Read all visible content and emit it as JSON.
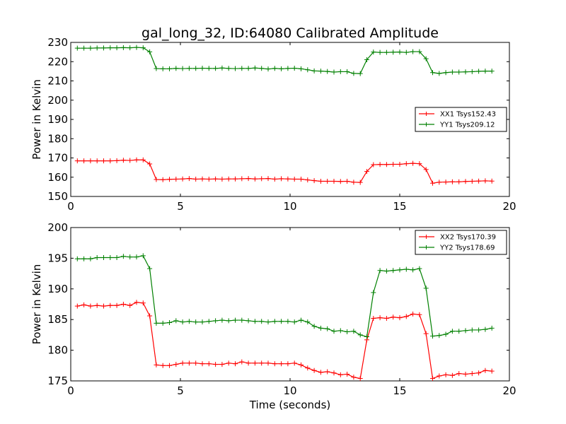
{
  "chart_data": [
    {
      "type": "line",
      "title": "gal_long_32, ID:64080 Calibrated Amplitude",
      "xlabel": "",
      "ylabel": "Power in Kelvin",
      "xlim": [
        0,
        20
      ],
      "ylim": [
        150,
        230
      ],
      "xticks": [
        0,
        5,
        10,
        15,
        20
      ],
      "yticks": [
        150,
        160,
        170,
        180,
        190,
        200,
        210,
        220,
        230
      ],
      "grid": false,
      "legend_position": "center-right",
      "x": [
        0.3,
        0.6,
        0.9,
        1.2,
        1.5,
        1.8,
        2.1,
        2.4,
        2.7,
        3.0,
        3.3,
        3.6,
        3.9,
        4.2,
        4.5,
        4.8,
        5.1,
        5.4,
        5.7,
        6.0,
        6.3,
        6.6,
        6.9,
        7.2,
        7.5,
        7.8,
        8.1,
        8.4,
        8.7,
        9.0,
        9.3,
        9.6,
        9.9,
        10.2,
        10.5,
        10.8,
        11.1,
        11.4,
        11.7,
        12.0,
        12.3,
        12.6,
        12.9,
        13.2,
        13.5,
        13.8,
        14.1,
        14.4,
        14.7,
        15.0,
        15.3,
        15.6,
        15.9,
        16.2,
        16.5,
        16.8,
        17.1,
        17.4,
        17.7,
        18.0,
        18.3,
        18.6,
        18.9,
        19.2
      ],
      "series": [
        {
          "name": "XX1 Tsys152.43",
          "color": "#ff0000",
          "values": [
            168.5,
            168.5,
            168.5,
            168.5,
            168.5,
            168.5,
            168.6,
            168.8,
            168.7,
            169.0,
            169.0,
            166.9,
            158.8,
            158.7,
            158.9,
            159.0,
            159.1,
            159.3,
            159.0,
            159.1,
            159.0,
            159.1,
            159.0,
            159.1,
            159.1,
            159.2,
            159.3,
            159.1,
            159.2,
            159.3,
            159.0,
            159.2,
            159.1,
            159.0,
            159.0,
            158.6,
            158.2,
            157.9,
            157.9,
            157.9,
            157.8,
            157.9,
            157.4,
            157.3,
            163.0,
            166.5,
            166.6,
            166.6,
            166.7,
            166.7,
            167.0,
            167.2,
            167.0,
            164.0,
            156.9,
            157.4,
            157.5,
            157.6,
            157.6,
            157.8,
            157.9,
            158.0,
            158.1,
            158.0
          ]
        },
        {
          "name": "YY1 Tsys209.12",
          "color": "#008000",
          "values": [
            227.0,
            227.0,
            227.0,
            227.1,
            227.1,
            227.2,
            227.2,
            227.3,
            227.2,
            227.4,
            227.2,
            225.1,
            216.4,
            216.3,
            216.3,
            216.5,
            216.4,
            216.5,
            216.5,
            216.6,
            216.5,
            216.5,
            216.7,
            216.5,
            216.4,
            216.5,
            216.5,
            216.7,
            216.5,
            216.2,
            216.5,
            216.3,
            216.5,
            216.6,
            216.3,
            215.8,
            215.2,
            215.1,
            214.9,
            214.6,
            214.8,
            214.8,
            213.9,
            213.8,
            221.0,
            225.0,
            224.8,
            224.8,
            224.9,
            225.0,
            224.8,
            225.2,
            225.2,
            221.5,
            214.3,
            213.9,
            214.3,
            214.6,
            214.6,
            214.7,
            214.8,
            215.0,
            215.1,
            215.1
          ]
        }
      ]
    },
    {
      "type": "line",
      "title": "",
      "xlabel": "Time (seconds)",
      "ylabel": "Power in Kelvin",
      "xlim": [
        0,
        20
      ],
      "ylim": [
        175,
        200
      ],
      "xticks": [
        0,
        5,
        10,
        15,
        20
      ],
      "yticks": [
        175,
        180,
        185,
        190,
        195,
        200
      ],
      "grid": false,
      "legend_position": "top-right",
      "x": [
        0.3,
        0.6,
        0.9,
        1.2,
        1.5,
        1.8,
        2.1,
        2.4,
        2.7,
        3.0,
        3.3,
        3.6,
        3.9,
        4.2,
        4.5,
        4.8,
        5.1,
        5.4,
        5.7,
        6.0,
        6.3,
        6.6,
        6.9,
        7.2,
        7.5,
        7.8,
        8.1,
        8.4,
        8.7,
        9.0,
        9.3,
        9.6,
        9.9,
        10.2,
        10.5,
        10.8,
        11.1,
        11.4,
        11.7,
        12.0,
        12.3,
        12.6,
        12.9,
        13.2,
        13.5,
        13.8,
        14.1,
        14.4,
        14.7,
        15.0,
        15.3,
        15.6,
        15.9,
        16.2,
        16.5,
        16.8,
        17.1,
        17.4,
        17.7,
        18.0,
        18.3,
        18.6,
        18.9,
        19.2
      ],
      "series": [
        {
          "name": "XX2 Tsys170.39",
          "color": "#ff0000",
          "values": [
            187.2,
            187.4,
            187.2,
            187.3,
            187.2,
            187.3,
            187.3,
            187.5,
            187.3,
            187.8,
            187.7,
            185.6,
            177.6,
            177.5,
            177.5,
            177.7,
            177.9,
            177.9,
            177.9,
            177.8,
            177.8,
            177.7,
            177.7,
            177.9,
            177.8,
            178.1,
            177.9,
            177.9,
            177.9,
            177.9,
            177.8,
            177.8,
            177.8,
            177.9,
            177.6,
            177.1,
            176.7,
            176.4,
            176.5,
            176.3,
            176.0,
            176.1,
            175.6,
            175.4,
            181.7,
            185.2,
            185.3,
            185.2,
            185.4,
            185.3,
            185.5,
            185.9,
            185.8,
            182.7,
            175.4,
            175.8,
            176.0,
            175.9,
            176.2,
            176.1,
            176.2,
            176.3,
            176.7,
            176.6
          ]
        },
        {
          "name": "YY2 Tsys178.69",
          "color": "#008000",
          "values": [
            194.9,
            194.9,
            194.9,
            195.1,
            195.1,
            195.1,
            195.1,
            195.3,
            195.2,
            195.2,
            195.4,
            193.3,
            184.4,
            184.4,
            184.5,
            184.8,
            184.6,
            184.7,
            184.6,
            184.6,
            184.7,
            184.8,
            184.9,
            184.8,
            184.9,
            184.9,
            184.8,
            184.7,
            184.7,
            184.6,
            184.7,
            184.7,
            184.7,
            184.6,
            184.9,
            184.6,
            183.9,
            183.6,
            183.5,
            183.1,
            183.2,
            183.0,
            183.1,
            182.5,
            182.2,
            189.4,
            193.0,
            192.9,
            193.0,
            193.1,
            193.2,
            193.1,
            193.3,
            190.1,
            182.3,
            182.4,
            182.6,
            183.1,
            183.1,
            183.2,
            183.3,
            183.3,
            183.4,
            183.6
          ]
        }
      ]
    }
  ]
}
